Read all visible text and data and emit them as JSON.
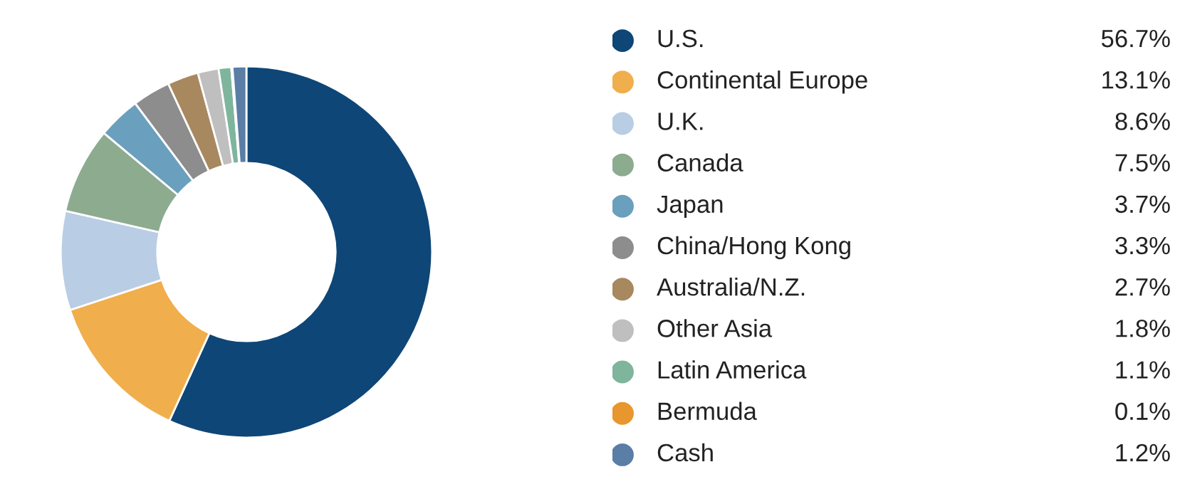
{
  "chart_data": {
    "type": "donut",
    "categories": [
      "U.S.",
      "Continental Europe",
      "U.K.",
      "Canada",
      "Japan",
      "China/Hong Kong",
      "Australia/N.Z.",
      "Other Asia",
      "Latin America",
      "Bermuda",
      "Cash"
    ],
    "values": [
      56.7,
      13.1,
      8.6,
      7.5,
      3.7,
      3.3,
      2.7,
      1.8,
      1.1,
      0.1,
      1.2
    ],
    "value_labels": [
      "56.7%",
      "13.1%",
      "8.6%",
      "7.5%",
      "3.7%",
      "3.3%",
      "2.7%",
      "1.8%",
      "1.1%",
      "0.1%",
      "1.2%"
    ],
    "colors": [
      "#0e4677",
      "#f0ae4c",
      "#b9cde5",
      "#8cab8f",
      "#6aa0bd",
      "#8d8d8d",
      "#a8885f",
      "#bfbfbf",
      "#7fb59d",
      "#e8962e",
      "#5a7ea6"
    ],
    "legend": "right"
  }
}
